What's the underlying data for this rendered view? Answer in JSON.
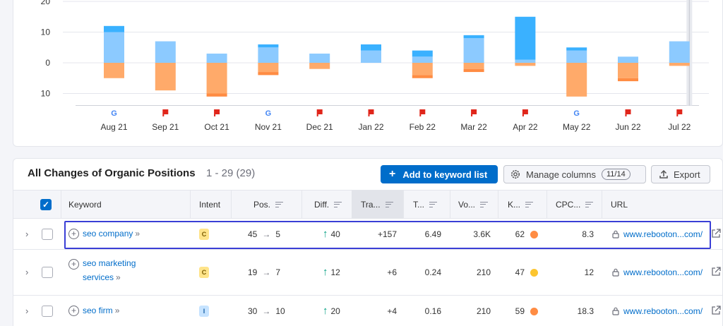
{
  "chart_data": {
    "type": "bar",
    "categories": [
      "Aug 21",
      "Sep 21",
      "Oct 21",
      "Nov 21",
      "Dec 21",
      "Jan 22",
      "Feb 22",
      "Mar 22",
      "Apr 22",
      "May 22",
      "Jun 22",
      "Jul 22"
    ],
    "series": [
      {
        "color": "#8ccaff",
        "values": [
          10,
          7,
          3,
          5,
          3,
          4,
          2,
          8,
          1,
          4,
          2,
          7
        ]
      },
      {
        "color": "#3ab1ff",
        "values": [
          2,
          0,
          0,
          1,
          0,
          2,
          2,
          1,
          14,
          1,
          0,
          0
        ]
      },
      {
        "color": "#ffaa6a",
        "values": [
          -5,
          -9,
          -10,
          -3,
          -2,
          0,
          -4,
          -2,
          -1,
          -11,
          -5,
          -1
        ]
      },
      {
        "color": "#ff8c43",
        "values": [
          0,
          0,
          -1,
          -1,
          0,
          0,
          -1,
          -1,
          0,
          0,
          -1,
          0
        ]
      }
    ],
    "ytick_labels": [
      "20",
      "10",
      "0",
      "10"
    ],
    "ytick_values": [
      20,
      10,
      0,
      -10
    ],
    "ylim": [
      -17,
      20
    ],
    "grid": true,
    "markers": [
      "google",
      "flag",
      "flag",
      "google",
      "flag",
      "flag",
      "flag",
      "flag",
      "flag",
      "google",
      "flag",
      "flag"
    ],
    "marker_icons": {
      "google": "google-icon",
      "flag": "flag-icon"
    },
    "hover_category": "Jul 22"
  },
  "colors": {
    "accent": "#006dca",
    "flag": "#e0261b",
    "google_red": "#ea4335",
    "google_blue": "#4285f4",
    "google_yellow": "#fbbc05",
    "google_green": "#34a853"
  },
  "table": {
    "title": "All Changes of Organic Positions",
    "count": "1 - 29 (29)",
    "add_button": "Add to keyword list",
    "add_icon": "+",
    "manage_columns": "Manage columns",
    "columns_badge": "11/14",
    "export": "Export",
    "headers": {
      "keyword": "Keyword",
      "intent": "Intent",
      "pos": "Pos.",
      "diff": "Diff.",
      "traffic": "Tra...",
      "t": "T...",
      "volume": "Vo...",
      "kd": "K...",
      "cpc": "CPC...",
      "url": "URL"
    },
    "rows": [
      {
        "keyword_line1": "seo company",
        "keyword_line2": "",
        "intent": "C",
        "pos_from": "45",
        "pos_to": "5",
        "diff": "40",
        "traffic": "+157",
        "t": "6.49",
        "volume": "3.6K",
        "kd": "62",
        "kd_color": "#ff8c43",
        "cpc": "8.3",
        "url": "www.rebooton...com/"
      },
      {
        "keyword_line1": "seo marketing",
        "keyword_line2": "services",
        "intent": "C",
        "pos_from": "19",
        "pos_to": "7",
        "diff": "12",
        "traffic": "+6",
        "t": "0.24",
        "volume": "210",
        "kd": "47",
        "kd_color": "#fcc52f",
        "cpc": "12",
        "url": "www.rebooton...com/"
      },
      {
        "keyword_line1": "seo firm",
        "keyword_line2": "",
        "intent": "I",
        "pos_from": "30",
        "pos_to": "10",
        "diff": "20",
        "traffic": "+4",
        "t": "0.16",
        "volume": "210",
        "kd": "59",
        "kd_color": "#ff8c43",
        "cpc": "18.3",
        "url": "www.rebooton...com/"
      }
    ]
  }
}
